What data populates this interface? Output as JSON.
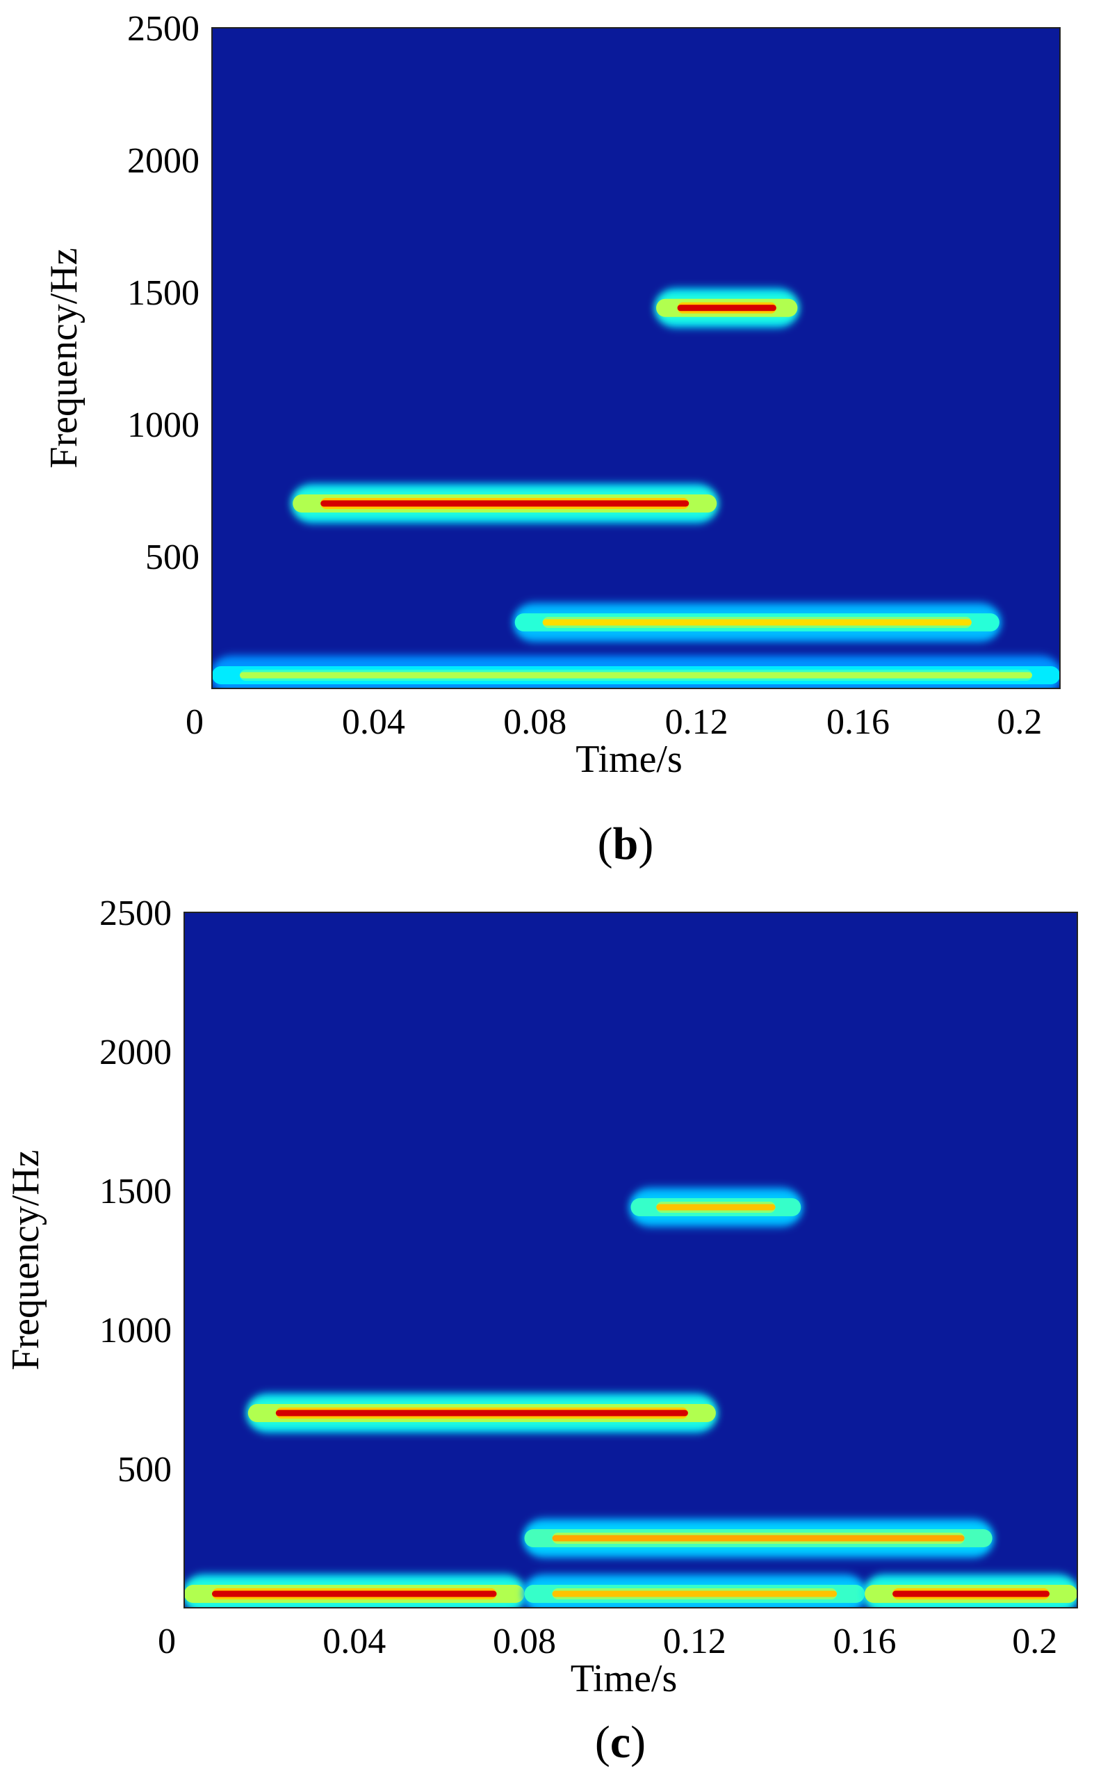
{
  "chart_data": [
    {
      "type": "heatmap",
      "caption_letter": "b",
      "xlabel": "Time/s",
      "ylabel": "Frequency/Hz",
      "xlim": [
        0,
        0.21
      ],
      "ylim": [
        0,
        2500
      ],
      "xticks": [
        {
          "value": 0,
          "label": "0"
        },
        {
          "value": 0.04,
          "label": "0.04"
        },
        {
          "value": 0.08,
          "label": "0.08"
        },
        {
          "value": 0.12,
          "label": "0.12"
        },
        {
          "value": 0.16,
          "label": "0.16"
        },
        {
          "value": 0.2,
          "label": "0.2"
        }
      ],
      "yticks": [
        {
          "value": 500,
          "label": "500"
        },
        {
          "value": 1000,
          "label": "1000"
        },
        {
          "value": 1500,
          "label": "1500"
        },
        {
          "value": 2000,
          "label": "2000"
        },
        {
          "value": 2500,
          "label": "2500"
        }
      ],
      "colormap": "jet",
      "background": "#0a1a9a",
      "components": [
        {
          "t_start": 0.02,
          "t_end": 0.125,
          "freq": 700,
          "intensity": 1.0
        },
        {
          "t_start": 0.11,
          "t_end": 0.145,
          "freq": 1440,
          "intensity": 1.0
        },
        {
          "t_start": 0.075,
          "t_end": 0.195,
          "freq": 250,
          "intensity": 0.72
        },
        {
          "t_start": 0.0,
          "t_end": 0.21,
          "freq": 50,
          "intensity": 0.6
        }
      ]
    },
    {
      "type": "heatmap",
      "caption_letter": "c",
      "xlabel": "Time/s",
      "ylabel": "Frequency/Hz",
      "xlim": [
        0,
        0.21
      ],
      "ylim": [
        0,
        2500
      ],
      "xticks": [
        {
          "value": 0,
          "label": "0"
        },
        {
          "value": 0.04,
          "label": "0.04"
        },
        {
          "value": 0.08,
          "label": "0.08"
        },
        {
          "value": 0.12,
          "label": "0.12"
        },
        {
          "value": 0.16,
          "label": "0.16"
        },
        {
          "value": 0.2,
          "label": "0.2"
        }
      ],
      "yticks": [
        {
          "value": 500,
          "label": "500"
        },
        {
          "value": 1000,
          "label": "1000"
        },
        {
          "value": 1500,
          "label": "1500"
        },
        {
          "value": 2000,
          "label": "2000"
        },
        {
          "value": 2500,
          "label": "2500"
        }
      ],
      "colormap": "jet",
      "background": "#0a1a9a",
      "components": [
        {
          "t_start": 0.015,
          "t_end": 0.125,
          "freq": 700,
          "intensity": 1.0
        },
        {
          "t_start": 0.105,
          "t_end": 0.145,
          "freq": 1440,
          "intensity": 0.75
        },
        {
          "t_start": 0.08,
          "t_end": 0.19,
          "freq": 250,
          "intensity": 0.78
        },
        {
          "t_start": 0.0,
          "t_end": 0.08,
          "freq": 50,
          "intensity": 1.0
        },
        {
          "t_start": 0.08,
          "t_end": 0.16,
          "freq": 50,
          "intensity": 0.75
        },
        {
          "t_start": 0.16,
          "t_end": 0.21,
          "freq": 50,
          "intensity": 1.0
        }
      ]
    }
  ]
}
